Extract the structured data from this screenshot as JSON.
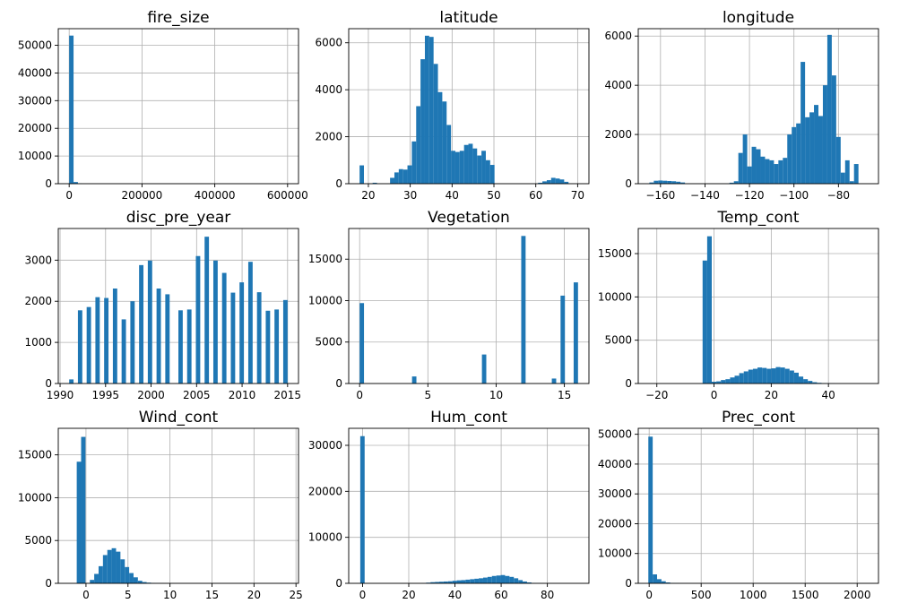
{
  "figure_title": "",
  "colors": {
    "bar": "#1f77b4",
    "grid": "#b0b0b0",
    "axis": "#000000"
  },
  "chart_data": [
    {
      "type": "bar",
      "title": "fire_size",
      "xlabel": "",
      "ylabel": "",
      "xlim": [
        -30000,
        630000
      ],
      "ylim": [
        0,
        56000
      ],
      "xticks": [
        0,
        200000,
        400000,
        600000
      ],
      "yticks": [
        0,
        10000,
        20000,
        30000,
        40000,
        50000
      ],
      "bin_start": 0,
      "bin_width": 12000,
      "values": [
        53500,
        600,
        100
      ]
    },
    {
      "type": "bar",
      "title": "latitude",
      "xlabel": "",
      "ylabel": "",
      "xlim": [
        15.3,
        72.7
      ],
      "ylim": [
        0,
        6600
      ],
      "xticks": [
        20,
        30,
        40,
        50,
        60,
        70
      ],
      "yticks": [
        0,
        2000,
        4000,
        6000
      ],
      "bin_start": 17.9,
      "bin_width": 1.04,
      "values": [
        780,
        0,
        0,
        40,
        0,
        0,
        0,
        250,
        480,
        620,
        600,
        780,
        1800,
        3300,
        5300,
        6300,
        6250,
        5100,
        3900,
        3500,
        2500,
        1400,
        1350,
        1400,
        1650,
        1700,
        1500,
        1200,
        1400,
        1000,
        800,
        0,
        0,
        0,
        0,
        0,
        0,
        0,
        0,
        0,
        0,
        40,
        100,
        150,
        250,
        220,
        180,
        80,
        0,
        0
      ]
    },
    {
      "type": "bar",
      "title": "longitude",
      "xlabel": "",
      "ylabel": "",
      "xlim": [
        -170,
        -62
      ],
      "ylim": [
        0,
        6300
      ],
      "xticks": [
        -160,
        -140,
        -120,
        -100,
        -80
      ],
      "yticks": [
        0,
        2000,
        4000,
        6000
      ],
      "bin_start": -165,
      "bin_width": 2,
      "values": [
        50,
        120,
        130,
        120,
        110,
        100,
        80,
        50,
        0,
        0,
        0,
        0,
        0,
        0,
        0,
        0,
        0,
        0,
        40,
        100,
        1250,
        2000,
        700,
        1500,
        1400,
        1100,
        1000,
        950,
        800,
        950,
        1050,
        2000,
        2300,
        2450,
        4950,
        2700,
        2900,
        3200,
        2750,
        4000,
        6050,
        4400,
        1900,
        450,
        950,
        100,
        800
      ]
    },
    {
      "type": "bar",
      "title": "disc_pre_year",
      "xlabel": "",
      "ylabel": "",
      "xlim": [
        1989.8,
        2016.2
      ],
      "ylim": [
        0,
        3770
      ],
      "xticks": [
        1990,
        1995,
        2000,
        2005,
        2010,
        2015
      ],
      "yticks": [
        0,
        1000,
        2000,
        3000
      ],
      "bin_start": 1991,
      "bin_width": 0.48,
      "values": [
        100,
        0,
        1780,
        0,
        1860,
        0,
        2100,
        0,
        2080,
        0,
        2310,
        0,
        1560,
        0,
        2000,
        0,
        2880,
        0,
        2990,
        0,
        2310,
        0,
        2170,
        0,
        0,
        1780,
        0,
        1800,
        0,
        3100,
        0,
        3570,
        0,
        2990,
        0,
        2690,
        0,
        2210,
        0,
        2460,
        0,
        2960,
        0,
        2220,
        0,
        1770,
        0,
        1800,
        0,
        2030
      ]
    },
    {
      "type": "bar",
      "title": "Vegetation",
      "xlabel": "",
      "ylabel": "",
      "xlim": [
        -0.8,
        16.8
      ],
      "ylim": [
        0,
        18700
      ],
      "xticks": [
        0,
        5,
        10,
        15
      ],
      "yticks": [
        0,
        5000,
        10000,
        15000
      ],
      "bin_start": 0,
      "bin_width": 0.32,
      "values": [
        9700,
        0,
        0,
        0,
        0,
        0,
        0,
        0,
        0,
        0,
        0,
        0,
        850,
        0,
        0,
        0,
        0,
        0,
        0,
        0,
        0,
        0,
        0,
        0,
        0,
        0,
        0,
        0,
        3500,
        0,
        0,
        0,
        0,
        0,
        0,
        0,
        0,
        17800,
        0,
        0,
        0,
        0,
        0,
        0,
        600,
        0,
        10600,
        0,
        0,
        12200
      ]
    },
    {
      "type": "bar",
      "title": "Temp_cont",
      "xlabel": "",
      "ylabel": "",
      "xlim": [
        -26.5,
        57.5
      ],
      "ylim": [
        0,
        17900
      ],
      "xticks": [
        -20,
        0,
        20,
        40
      ],
      "yticks": [
        0,
        5000,
        10000,
        15000
      ],
      "bin_start": -4,
      "bin_width": 1.6,
      "values": [
        14200,
        17000,
        200,
        250,
        400,
        500,
        700,
        900,
        1200,
        1400,
        1600,
        1700,
        1850,
        1800,
        1700,
        1750,
        1900,
        1850,
        1700,
        1500,
        1250,
        800,
        500,
        300,
        150,
        80,
        40,
        20,
        10
      ]
    },
    {
      "type": "bar",
      "title": "Wind_cont",
      "xlabel": "",
      "ylabel": "",
      "xlim": [
        -3.3,
        25.3
      ],
      "ylim": [
        0,
        18100
      ],
      "xticks": [
        0,
        5,
        10,
        15,
        20,
        25
      ],
      "yticks": [
        0,
        5000,
        10000,
        15000
      ],
      "bin_start": -1.1,
      "bin_width": 0.52,
      "values": [
        14200,
        17100,
        0,
        400,
        1100,
        2000,
        3300,
        3900,
        4100,
        3700,
        2800,
        1900,
        1200,
        700,
        300,
        150,
        80,
        40,
        20,
        10
      ]
    },
    {
      "type": "bar",
      "title": "Hum_cont",
      "xlabel": "",
      "ylabel": "",
      "xlim": [
        -6,
        98
      ],
      "ylim": [
        0,
        33700
      ],
      "xticks": [
        0,
        20,
        40,
        60,
        80
      ],
      "yticks": [
        0,
        10000,
        20000,
        30000
      ],
      "bin_start": -1,
      "bin_width": 1.9,
      "values": [
        32000,
        0,
        0,
        0,
        0,
        0,
        0,
        0,
        0,
        0,
        0,
        0,
        0,
        0,
        50,
        150,
        250,
        300,
        350,
        400,
        450,
        550,
        650,
        700,
        800,
        900,
        1000,
        1100,
        1250,
        1400,
        1600,
        1700,
        1800,
        1600,
        1400,
        1100,
        700,
        400,
        200,
        80,
        30,
        10
      ]
    },
    {
      "type": "bar",
      "title": "Prec_cont",
      "xlabel": "",
      "ylabel": "",
      "xlim": [
        -105,
        2205
      ],
      "ylim": [
        0,
        52000
      ],
      "xticks": [
        0,
        500,
        1000,
        1500,
        2000
      ],
      "yticks": [
        0,
        10000,
        20000,
        30000,
        40000,
        50000
      ],
      "bin_start": -8,
      "bin_width": 42,
      "values": [
        49200,
        3000,
        1400,
        700,
        300,
        150,
        80,
        40,
        20,
        10
      ]
    }
  ]
}
